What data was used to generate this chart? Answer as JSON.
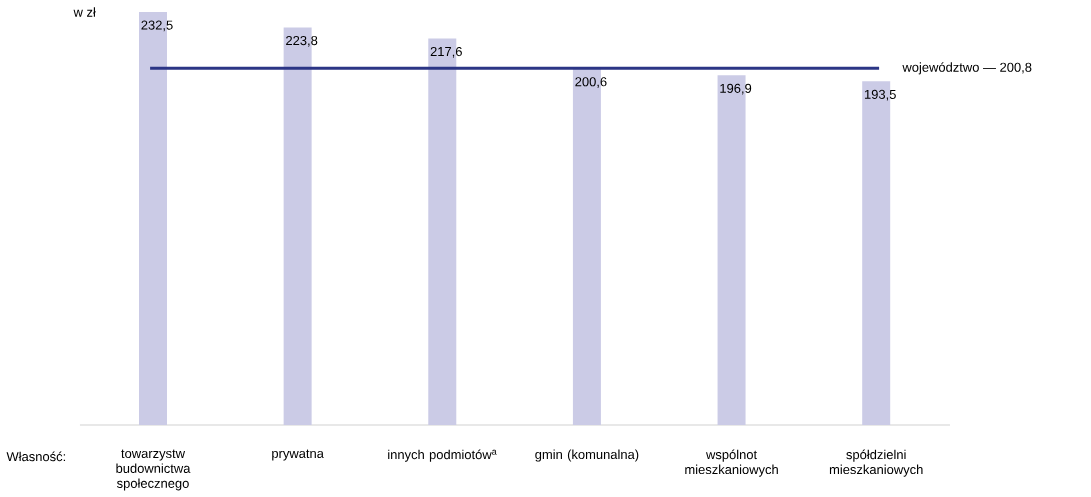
{
  "chart_data": {
    "type": "bar",
    "ylabel": "w zł",
    "xlabel": "Własność:",
    "categories": [
      "towarzystw budownictwa społecznego",
      "prywatna",
      "innych podmiotów$^{a}$",
      "gmin (komunalna)",
      "wspólnot mieszkaniowych",
      "spółdzielni mieszkaniowych"
    ],
    "values": [
      232.5,
      223.8,
      217.6,
      200.6,
      196.9,
      193.5
    ],
    "value_labels": [
      "232,5",
      "223,8",
      "217,6",
      "200,6",
      "196,9",
      "193,5"
    ],
    "color": "#cbcbe6",
    "ref_lines": [
      {
        "axis": "y",
        "value": 200.8,
        "label": "województwo — 200,8",
        "color": "#2b3585"
      }
    ]
  }
}
